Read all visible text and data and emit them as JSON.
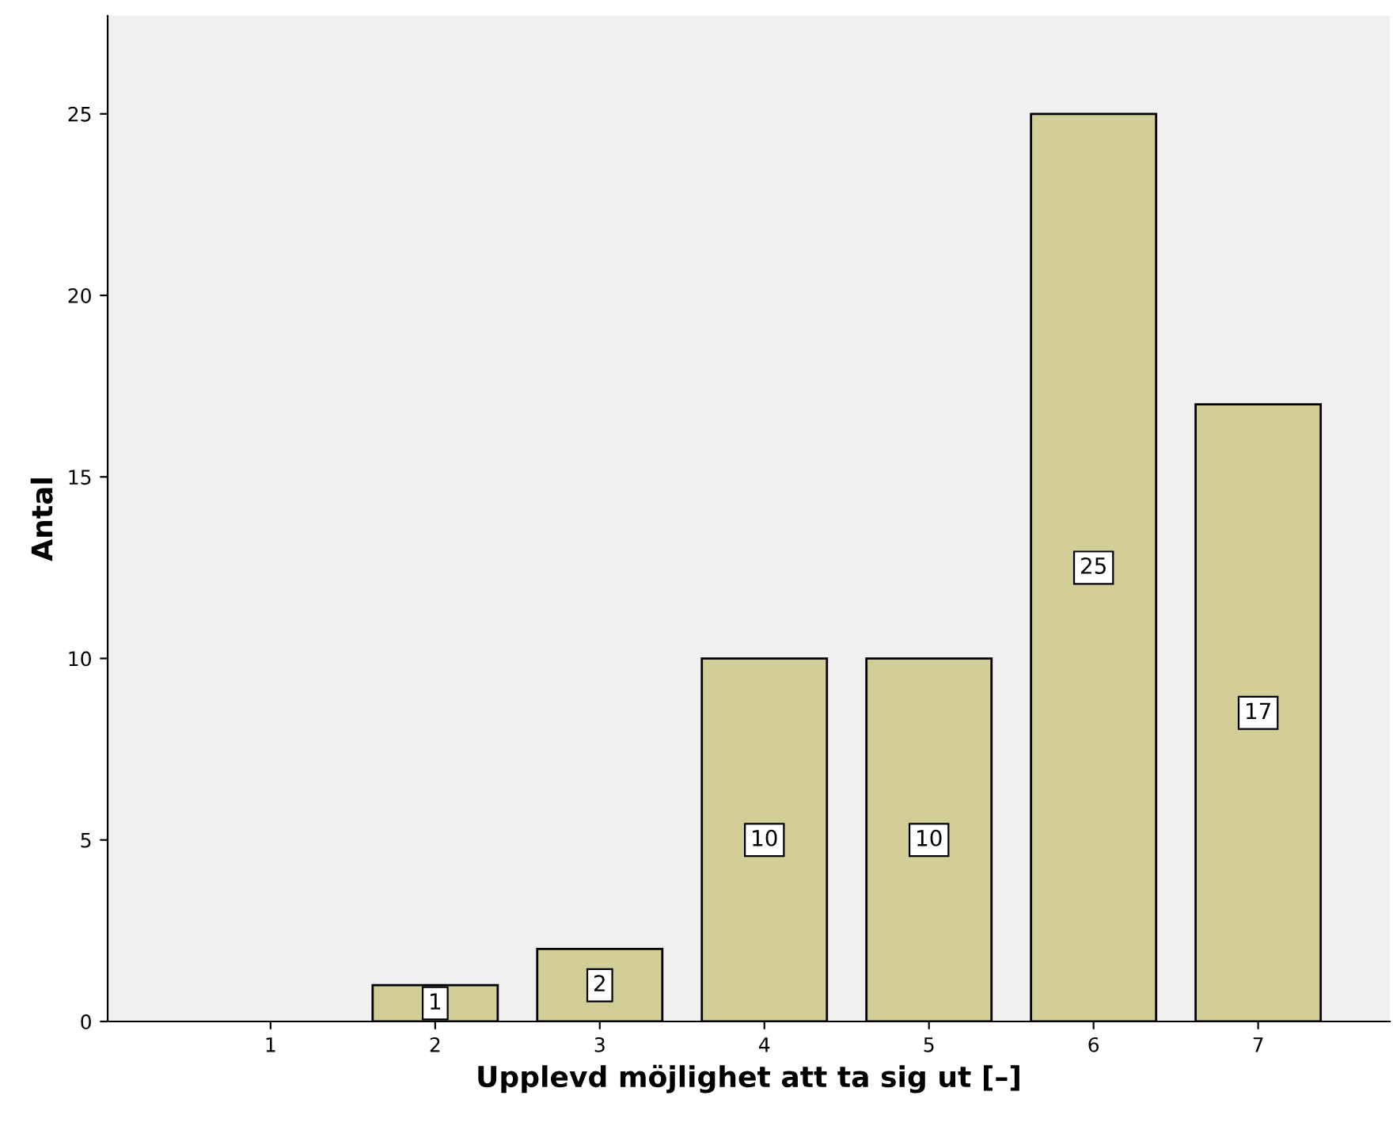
{
  "chart_data": {
    "type": "bar",
    "xlabel": "Upplevd möjlighet att ta sig ut [–]",
    "ylabel": "Antal",
    "categories": [
      "1",
      "2",
      "3",
      "4",
      "5",
      "6",
      "7"
    ],
    "values": [
      null,
      1,
      2,
      10,
      10,
      25,
      17
    ],
    "value_labels": [
      null,
      "1",
      "2",
      "10",
      "10",
      "25",
      "17"
    ],
    "color": "#d3ce97",
    "ylim": [
      0,
      27.7
    ],
    "yticks": [
      0,
      5,
      10,
      15,
      20,
      25
    ],
    "grid": false,
    "legend": false
  }
}
